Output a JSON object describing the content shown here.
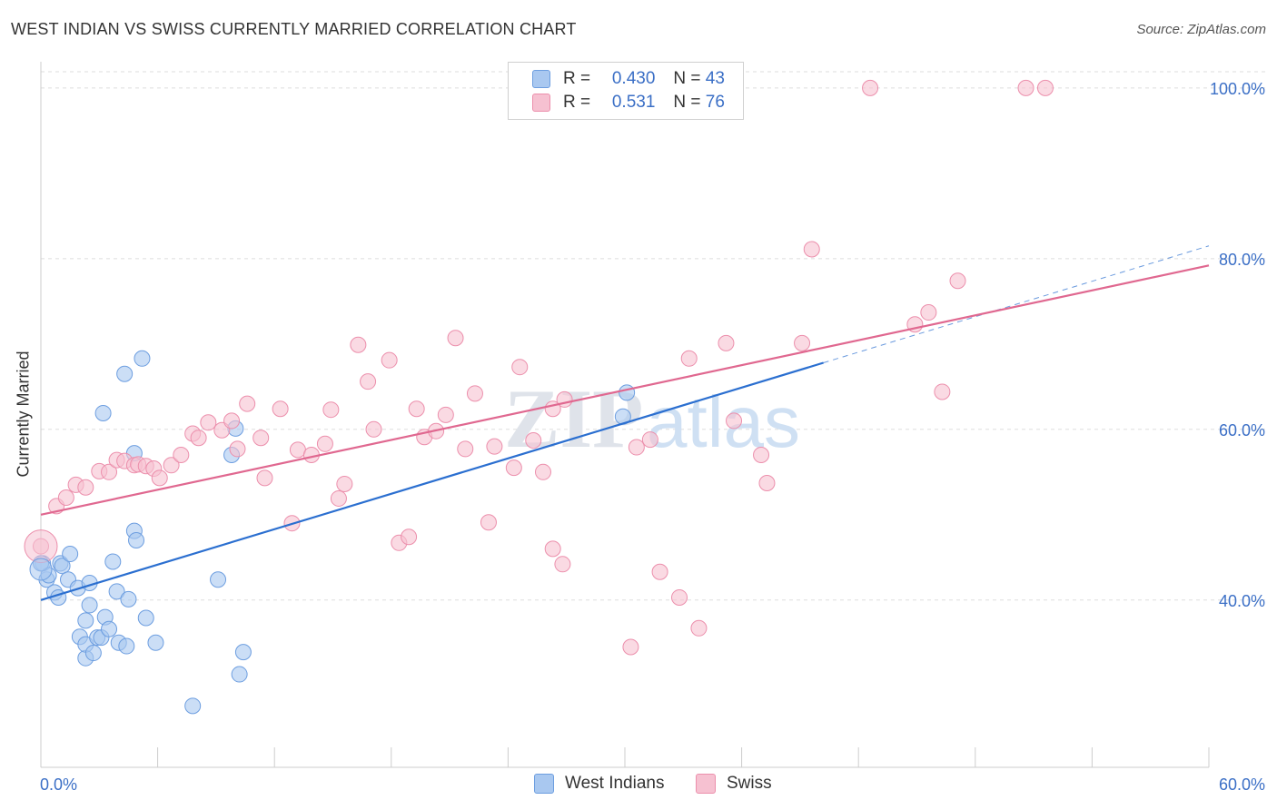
{
  "title": "WEST INDIAN VS SWISS CURRENTLY MARRIED CORRELATION CHART",
  "source": "Source: ZipAtlas.com",
  "watermark": {
    "zip": "ZIP",
    "atlas": "atlas"
  },
  "legend_top": [
    {
      "r_label": "R =",
      "r_value": "0.430",
      "n_label": "N =",
      "n_value": "43",
      "color": "#a9c8f0"
    },
    {
      "r_label": "R =",
      "r_value": "0.531",
      "n_label": "N =",
      "n_value": "76",
      "color": "#f6b8cb"
    }
  ],
  "legend_bottom": [
    {
      "label": "West Indians",
      "color": "#a9c8f0"
    },
    {
      "label": "Swiss",
      "color": "#f6b8cb"
    }
  ],
  "colors": {
    "west_fill": "#a9c8f0",
    "west_stroke": "#6d9ee0",
    "west_line": "#2b6fd0",
    "swiss_fill": "#f6c1d1",
    "swiss_stroke": "#ec8fac",
    "swiss_line": "#e06890",
    "tick_label": "#3b6fc6",
    "grid": "#dddddd"
  },
  "chart_data": {
    "type": "scatter",
    "title": "WEST INDIAN VS SWISS CURRENTLY MARRIED CORRELATION CHART",
    "xlabel": "",
    "ylabel": "Currently Married",
    "xlim": [
      0,
      60
    ],
    "ylim": [
      20.4,
      101.9
    ],
    "x_tick_labels": [
      {
        "value": 0,
        "label": "0.0%"
      },
      {
        "value": 60,
        "label": "60.0%"
      }
    ],
    "y_tick_labels": [
      {
        "value": 40,
        "label": "40.0%"
      },
      {
        "value": 60,
        "label": "60.0%"
      },
      {
        "value": 80,
        "label": "80.0%"
      },
      {
        "value": 100,
        "label": "100.0%"
      }
    ],
    "grid": true,
    "legend_position": "top-center",
    "series": [
      {
        "name": "West Indians",
        "points": [
          [
            0.1,
            44.3
          ],
          [
            0.3,
            42.4
          ],
          [
            0.4,
            42.9
          ],
          [
            0.7,
            40.9
          ],
          [
            0.9,
            40.3
          ],
          [
            1.0,
            44.3
          ],
          [
            1.1,
            44.0
          ],
          [
            1.4,
            42.4
          ],
          [
            1.5,
            45.4
          ],
          [
            1.9,
            41.4
          ],
          [
            2.0,
            35.7
          ],
          [
            2.3,
            33.2
          ],
          [
            2.3,
            34.8
          ],
          [
            2.3,
            37.6
          ],
          [
            2.5,
            42.0
          ],
          [
            2.5,
            39.4
          ],
          [
            2.7,
            33.8
          ],
          [
            2.9,
            35.6
          ],
          [
            3.1,
            35.6
          ],
          [
            3.3,
            38.0
          ],
          [
            3.5,
            36.6
          ],
          [
            3.7,
            44.5
          ],
          [
            3.9,
            41.0
          ],
          [
            4.0,
            35.0
          ],
          [
            4.4,
            34.6
          ],
          [
            4.5,
            40.1
          ],
          [
            4.8,
            48.1
          ],
          [
            4.8,
            57.2
          ],
          [
            4.9,
            47.0
          ],
          [
            5.2,
            68.3
          ],
          [
            5.4,
            37.9
          ],
          [
            5.9,
            35.0
          ],
          [
            3.2,
            61.9
          ],
          [
            4.3,
            66.5
          ],
          [
            7.8,
            27.6
          ],
          [
            9.1,
            42.4
          ],
          [
            9.8,
            57.0
          ],
          [
            10.2,
            31.3
          ],
          [
            10.4,
            33.9
          ],
          [
            10.0,
            60.1
          ],
          [
            29.9,
            61.5
          ],
          [
            30.1,
            64.3
          ],
          [
            0.0,
            44.3
          ]
        ]
      },
      {
        "name": "Swiss",
        "points": [
          [
            0.0,
            46.3
          ],
          [
            0.8,
            51.0
          ],
          [
            1.3,
            52.0
          ],
          [
            1.8,
            53.5
          ],
          [
            2.3,
            53.2
          ],
          [
            3.0,
            55.1
          ],
          [
            3.5,
            55.0
          ],
          [
            3.9,
            56.4
          ],
          [
            4.3,
            56.3
          ],
          [
            4.8,
            55.8
          ],
          [
            5.0,
            55.9
          ],
          [
            5.4,
            55.7
          ],
          [
            5.8,
            55.4
          ],
          [
            6.1,
            54.3
          ],
          [
            6.7,
            55.8
          ],
          [
            7.2,
            57.0
          ],
          [
            7.8,
            59.5
          ],
          [
            8.1,
            59.0
          ],
          [
            8.6,
            60.8
          ],
          [
            9.3,
            59.9
          ],
          [
            9.8,
            61.0
          ],
          [
            10.1,
            57.7
          ],
          [
            10.6,
            63.0
          ],
          [
            11.3,
            59.0
          ],
          [
            11.5,
            54.3
          ],
          [
            12.3,
            62.4
          ],
          [
            12.9,
            49.0
          ],
          [
            13.2,
            57.6
          ],
          [
            13.9,
            57.0
          ],
          [
            14.6,
            58.3
          ],
          [
            14.9,
            62.3
          ],
          [
            15.3,
            51.9
          ],
          [
            15.6,
            53.6
          ],
          [
            16.3,
            69.9
          ],
          [
            16.8,
            65.6
          ],
          [
            17.1,
            60.0
          ],
          [
            17.9,
            68.1
          ],
          [
            18.4,
            46.7
          ],
          [
            18.9,
            47.4
          ],
          [
            19.3,
            62.4
          ],
          [
            19.7,
            59.1
          ],
          [
            20.3,
            59.8
          ],
          [
            20.8,
            61.7
          ],
          [
            21.3,
            70.7
          ],
          [
            21.8,
            57.7
          ],
          [
            22.3,
            64.2
          ],
          [
            23.0,
            49.1
          ],
          [
            23.3,
            58.0
          ],
          [
            24.3,
            55.5
          ],
          [
            24.6,
            67.3
          ],
          [
            25.3,
            58.7
          ],
          [
            25.8,
            55.0
          ],
          [
            26.3,
            46.0
          ],
          [
            26.3,
            62.4
          ],
          [
            26.8,
            44.2
          ],
          [
            26.9,
            63.5
          ],
          [
            30.3,
            34.5
          ],
          [
            30.6,
            57.9
          ],
          [
            31.3,
            58.8
          ],
          [
            31.8,
            43.3
          ],
          [
            32.8,
            40.3
          ],
          [
            33.3,
            68.3
          ],
          [
            33.8,
            36.7
          ],
          [
            35.2,
            70.1
          ],
          [
            35.6,
            61.0
          ],
          [
            37.0,
            57.0
          ],
          [
            37.3,
            53.7
          ],
          [
            39.1,
            70.1
          ],
          [
            39.6,
            81.1
          ],
          [
            42.6,
            100.0
          ],
          [
            44.9,
            72.3
          ],
          [
            45.6,
            73.7
          ],
          [
            46.3,
            64.4
          ],
          [
            47.1,
            77.4
          ],
          [
            50.6,
            100.0
          ],
          [
            51.6,
            100.0
          ]
        ]
      }
    ],
    "trendlines": [
      {
        "series": "West Indians",
        "from": [
          0,
          40.0
        ],
        "to": [
          40.2,
          67.8
        ],
        "dashed_to": [
          60,
          81.5
        ]
      },
      {
        "series": "Swiss",
        "from": [
          0,
          50.0
        ],
        "to": [
          60,
          79.2
        ]
      }
    ]
  }
}
